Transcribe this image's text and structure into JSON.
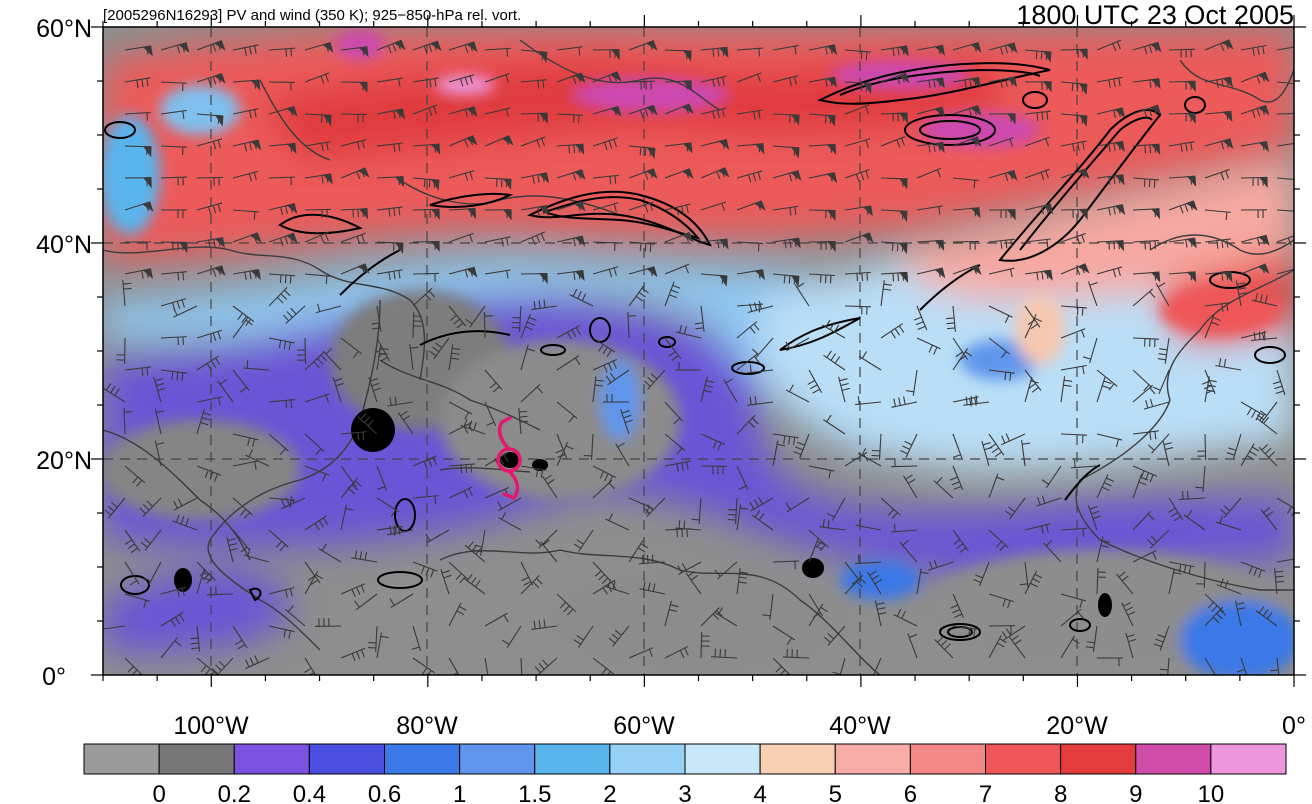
{
  "header": {
    "left": "[2005296N16293] PV and wind (350 K); 925−850-hPa rel. vort.",
    "right": "1800 UTC 23 Oct 2005"
  },
  "map": {
    "lon_range": [
      -110,
      0
    ],
    "lat_range": [
      0,
      60
    ],
    "lat_labels": [
      {
        "lat": 60,
        "text": "60°N"
      },
      {
        "lat": 40,
        "text": "40°N"
      },
      {
        "lat": 20,
        "text": "20°N"
      },
      {
        "lat": 0,
        "text": "0°"
      }
    ],
    "lon_labels": [
      {
        "lon": -100,
        "text": "100°W"
      },
      {
        "lon": -80,
        "text": "80°W"
      },
      {
        "lon": -60,
        "text": "60°W"
      },
      {
        "lon": -40,
        "text": "40°W"
      },
      {
        "lon": -20,
        "text": "20°W"
      },
      {
        "lon": 0,
        "text": "0°"
      }
    ],
    "gridlines": "dashed",
    "storm_symbol": {
      "lon": -73,
      "lat": 20,
      "color": "#e0196e"
    }
  },
  "colorbar": {
    "colors": [
      "#9b9b9b",
      "#787878",
      "#7b52e0",
      "#4a4fe0",
      "#3b78e8",
      "#5f95ec",
      "#5ab4ec",
      "#96d0f4",
      "#c8e8fa",
      "#f8d0b4",
      "#f8aca8",
      "#f48888",
      "#ef5658",
      "#e43c3c",
      "#cf4caa",
      "#ec96dc"
    ],
    "labels": [
      "0",
      "0.2",
      "0.4",
      "0.6",
      "1",
      "1.5",
      "2",
      "3",
      "4",
      "5",
      "6",
      "7",
      "8",
      "9",
      "10"
    ]
  }
}
